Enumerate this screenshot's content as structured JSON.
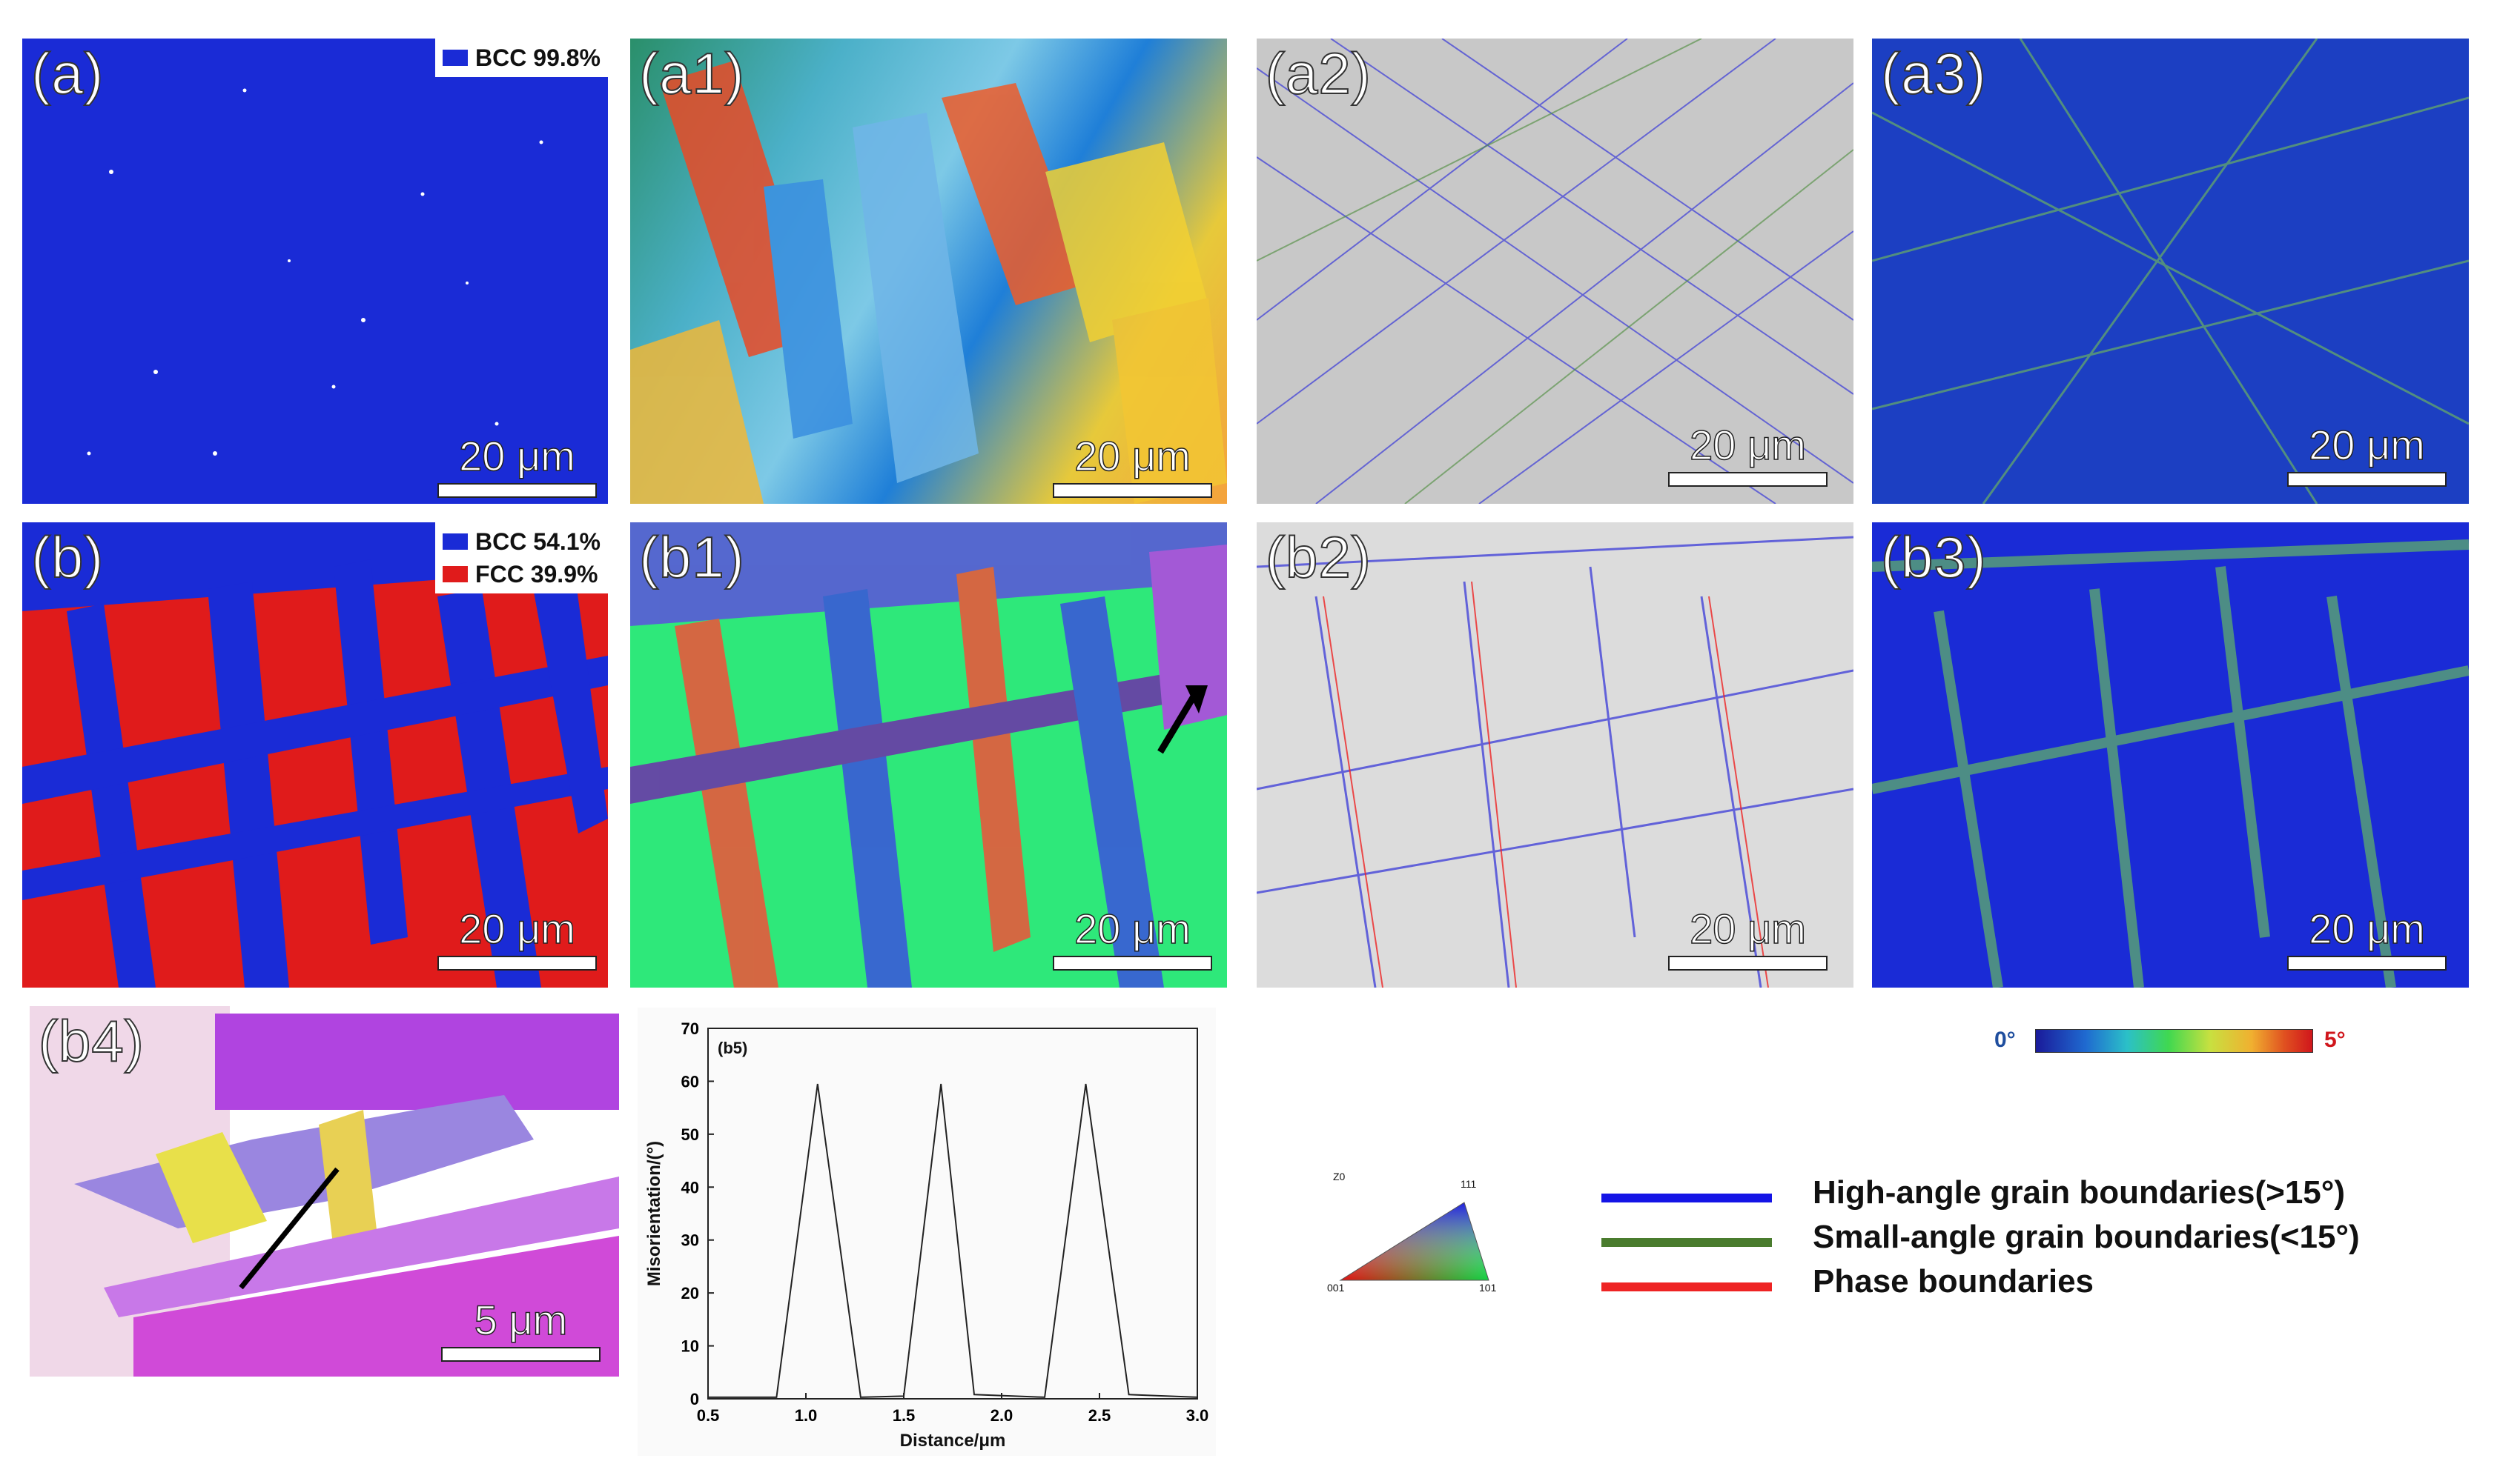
{
  "panels": {
    "a": {
      "label": "(a)",
      "scale": "20 μm"
    },
    "a1": {
      "label": "(a1)",
      "scale": "20 μm"
    },
    "a2": {
      "label": "(a2)",
      "scale": "20 μm"
    },
    "a3": {
      "label": "(a3)",
      "scale": "20 μm"
    },
    "b": {
      "label": "(b)",
      "scale": "20 μm"
    },
    "b1": {
      "label": "(b1)",
      "scale": "20 μm"
    },
    "b2": {
      "label": "(b2)",
      "scale": "20 μm"
    },
    "b3": {
      "label": "(b3)",
      "scale": "20 μm"
    },
    "b4": {
      "label": "(b4)",
      "scale": "5 μm"
    }
  },
  "phase_legend_a": [
    {
      "label": "BCC 99.8%",
      "color": "#1a2bd6"
    }
  ],
  "phase_legend_b": [
    {
      "label": "BCC 54.1%",
      "color": "#1a2bd6"
    },
    {
      "label": "FCC 39.9%",
      "color": "#e01b1b"
    }
  ],
  "kam_scale": {
    "min_label": "0°",
    "max_label": "5°",
    "min_color": "#1f4e9e",
    "max_color": "#d0161c"
  },
  "ipf_key": {
    "z_label": "Z0",
    "corner_111": "111",
    "corner_001": "001",
    "corner_101": "101"
  },
  "boundary_legend": [
    {
      "label": "High-angle grain boundaries(>15°)",
      "color": "#1414e6"
    },
    {
      "label": "Small-angle grain boundaries(<15°)",
      "color": "#4a7c2e"
    },
    {
      "label": "Phase boundaries",
      "color": "#ee2424"
    }
  ],
  "colors": {
    "bcc_blue": "#1a2bd6",
    "fcc_red": "#e01b1b",
    "fcc_green": "#2ee87a"
  },
  "chart_data": {
    "type": "line",
    "title": "(b5)",
    "xlabel": "Distance/μm",
    "ylabel": "Misorientation/(°)",
    "xlim": [
      0.5,
      3.0
    ],
    "ylim": [
      0,
      70
    ],
    "xticks": [
      "0.5",
      "1.0",
      "1.5",
      "2.0",
      "2.5",
      "3.0"
    ],
    "yticks": [
      "0",
      "10",
      "20",
      "30",
      "40",
      "50",
      "60",
      "70"
    ],
    "x": [
      0.5,
      0.85,
      1.06,
      1.28,
      1.5,
      1.69,
      1.86,
      2.22,
      2.43,
      2.65,
      3.0
    ],
    "y": [
      0.3,
      0.3,
      59.5,
      0.3,
      0.5,
      59.5,
      0.8,
      0.3,
      59.5,
      0.8,
      0.3
    ]
  }
}
